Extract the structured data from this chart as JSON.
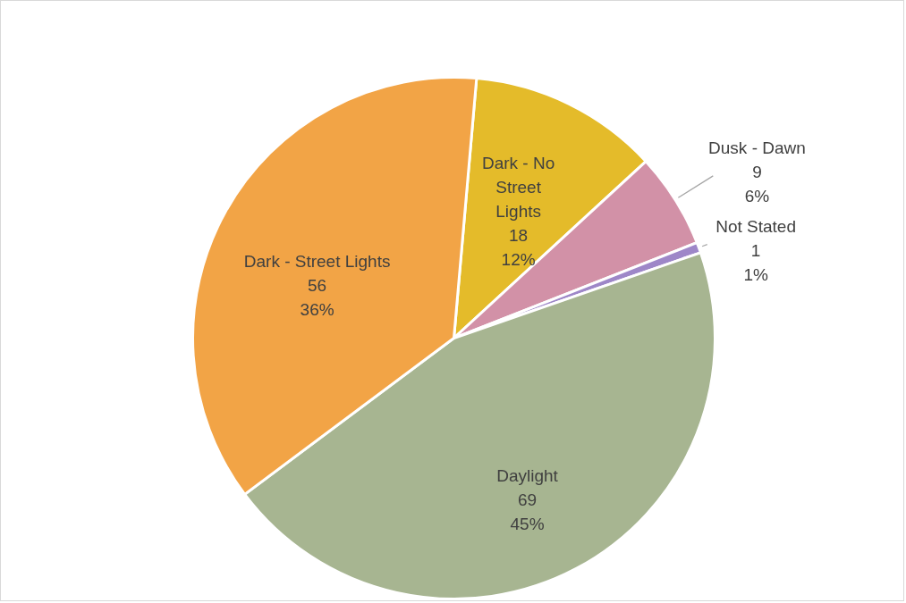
{
  "chart_data": {
    "type": "pie",
    "categories": [
      "Dark - No Street Lights",
      "Dusk - Dawn",
      "Not Stated",
      "Daylight",
      "Dark - Street Lights"
    ],
    "values": [
      18,
      9,
      1,
      69,
      56
    ],
    "colors": [
      "#e4bb2a",
      "#d291a7",
      "#9e87c8",
      "#a7b591",
      "#f2a446"
    ],
    "value_labels": [
      "18\n12%",
      "9\n6%",
      "1\n1%",
      "69\n45%",
      "56\n36%"
    ],
    "legend": false
  }
}
